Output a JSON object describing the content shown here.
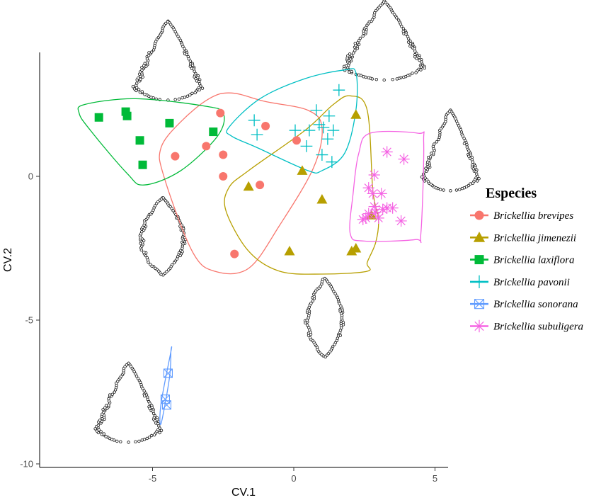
{
  "chart_data": {
    "type": "scatter",
    "title": "",
    "xlabel": "CV.1",
    "ylabel": "CV.2",
    "xlim": [
      -9,
      5.5
    ],
    "ylim": [
      -10.2,
      4.4
    ],
    "x_ticks": [
      -5,
      0,
      5
    ],
    "x_tick_labels": [
      "-5",
      "0",
      "5"
    ],
    "y_ticks": [
      0,
      -5,
      -10
    ],
    "y_tick_labels": [
      "0",
      "-5",
      "-10"
    ],
    "grid": false,
    "legend": {
      "title": "Especies",
      "position": "right"
    },
    "series": [
      {
        "name": "Brickellia brevipes",
        "color": "#F8766D",
        "marker": "circle",
        "points": [
          [
            -2.6,
            2.2
          ],
          [
            -1.0,
            1.75
          ],
          [
            0.1,
            1.25
          ],
          [
            -3.1,
            1.05
          ],
          [
            -2.5,
            0.75
          ],
          [
            -4.2,
            0.7
          ],
          [
            -2.5,
            0.0
          ],
          [
            -1.2,
            -0.3
          ],
          [
            -2.1,
            -2.7
          ]
        ],
        "hull": [
          [
            -2.2,
            2.9
          ],
          [
            -1.0,
            2.6
          ],
          [
            0.5,
            2.3
          ],
          [
            1.0,
            1.7
          ],
          [
            0.7,
            0.3
          ],
          [
            -0.5,
            -1.7
          ],
          [
            -1.6,
            -3.2
          ],
          [
            -2.8,
            -3.3
          ],
          [
            -3.6,
            -2.6
          ],
          [
            -4.6,
            0.0
          ],
          [
            -4.7,
            1.0
          ],
          [
            -4.0,
            1.9
          ],
          [
            -3.0,
            2.7
          ]
        ]
      },
      {
        "name": "Brickellia jimenezii",
        "color": "#B79F00",
        "marker": "triangle",
        "points": [
          [
            2.2,
            2.15
          ],
          [
            0.3,
            0.2
          ],
          [
            -1.6,
            -0.35
          ],
          [
            1.0,
            -0.8
          ],
          [
            -0.15,
            -2.6
          ],
          [
            2.05,
            -2.6
          ],
          [
            2.2,
            -2.5
          ],
          [
            2.75,
            -1.35
          ]
        ],
        "hull": [
          [
            2.0,
            2.8
          ],
          [
            2.6,
            2.3
          ],
          [
            2.8,
            -0.5
          ],
          [
            3.0,
            -1.5
          ],
          [
            2.9,
            -2.3
          ],
          [
            2.6,
            -3.0
          ],
          [
            2.6,
            -3.3
          ],
          [
            1.0,
            -3.4
          ],
          [
            -0.5,
            -3.3
          ],
          [
            -1.6,
            -2.6
          ],
          [
            -2.4,
            -1.2
          ],
          [
            -2.3,
            -0.4
          ],
          [
            -1.6,
            0.2
          ],
          [
            0.4,
            1.6
          ],
          [
            1.4,
            2.5
          ]
        ]
      },
      {
        "name": "Brickellia laxiflora",
        "color": "#00BA38",
        "marker": "square",
        "points": [
          [
            -6.9,
            2.05
          ],
          [
            -5.95,
            2.25
          ],
          [
            -5.9,
            2.1
          ],
          [
            -4.4,
            1.85
          ],
          [
            -2.85,
            1.55
          ],
          [
            -5.45,
            1.25
          ],
          [
            -5.35,
            0.4
          ]
        ],
        "hull": [
          [
            -7.4,
            2.5
          ],
          [
            -5.6,
            2.7
          ],
          [
            -3.2,
            2.45
          ],
          [
            -2.5,
            2.2
          ],
          [
            -2.7,
            1.4
          ],
          [
            -4.0,
            0.2
          ],
          [
            -5.3,
            -0.3
          ],
          [
            -5.9,
            0.1
          ],
          [
            -7.2,
            1.6
          ],
          [
            -7.6,
            2.2
          ]
        ]
      },
      {
        "name": "Brickellia pavonii",
        "color": "#00BFC4",
        "marker": "plus",
        "points": [
          [
            1.6,
            3.0
          ],
          [
            0.8,
            2.3
          ],
          [
            1.25,
            2.1
          ],
          [
            -1.4,
            1.95
          ],
          [
            0.9,
            1.8
          ],
          [
            1.05,
            1.7
          ],
          [
            0.55,
            1.6
          ],
          [
            1.4,
            1.6
          ],
          [
            0.05,
            1.6
          ],
          [
            -1.3,
            1.45
          ],
          [
            1.2,
            1.3
          ],
          [
            0.45,
            1.05
          ],
          [
            1.0,
            0.75
          ],
          [
            1.35,
            0.5
          ]
        ],
        "hull": [
          [
            -2.3,
            1.7
          ],
          [
            -1.2,
            2.7
          ],
          [
            0.4,
            3.4
          ],
          [
            1.8,
            3.7
          ],
          [
            2.2,
            3.6
          ],
          [
            2.2,
            2.3
          ],
          [
            1.8,
            0.8
          ],
          [
            1.0,
            0.2
          ],
          [
            0.5,
            0.2
          ],
          [
            -1.3,
            1.0
          ],
          [
            -2.2,
            1.4
          ]
        ]
      },
      {
        "name": "Brickellia sonorana",
        "color": "#619CFF",
        "marker": "square-x",
        "points": [
          [
            -4.45,
            -6.85
          ],
          [
            -4.55,
            -7.75
          ],
          [
            -4.5,
            -7.95
          ]
        ],
        "hull": [
          [
            -4.35,
            -6.1
          ],
          [
            -4.7,
            -7.9
          ],
          [
            -4.7,
            -8.6
          ],
          [
            -4.4,
            -7.0
          ],
          [
            -4.35,
            -6.1
          ]
        ]
      },
      {
        "name": "Brickellia subuligera",
        "color": "#F564E3",
        "marker": "asterisk",
        "points": [
          [
            3.3,
            0.85
          ],
          [
            3.9,
            0.6
          ],
          [
            2.85,
            0.05
          ],
          [
            2.65,
            -0.4
          ],
          [
            2.8,
            -0.6
          ],
          [
            3.1,
            -0.6
          ],
          [
            2.85,
            -1.05
          ],
          [
            3.3,
            -1.1
          ],
          [
            3.15,
            -1.15
          ],
          [
            3.5,
            -1.1
          ],
          [
            2.9,
            -1.25
          ],
          [
            2.65,
            -1.3
          ],
          [
            2.55,
            -1.45
          ],
          [
            2.45,
            -1.5
          ],
          [
            3.0,
            -1.45
          ],
          [
            3.8,
            -1.55
          ]
        ]
      }
    ],
    "subuligera_hull": [
      [
        2.7,
        1.5
      ],
      [
        4.4,
        1.5
      ],
      [
        4.6,
        1.2
      ],
      [
        4.5,
        -2.0
      ],
      [
        4.3,
        -2.2
      ],
      [
        2.5,
        -2.25
      ],
      [
        2.0,
        -2.0
      ],
      [
        2.1,
        -0.6
      ],
      [
        2.3,
        0.8
      ]
    ],
    "leaf_outlines": [
      {
        "name": "leaf-top-left",
        "tip": [
          -4.45,
          5.4
        ],
        "base": [
          -4.45,
          2.65
        ],
        "half_width": 1.15,
        "shape": "triangular"
      },
      {
        "name": "leaf-top-center",
        "tip": [
          3.2,
          6.1
        ],
        "base": [
          3.2,
          3.35
        ],
        "half_width": 1.35,
        "shape": "triangular"
      },
      {
        "name": "leaf-right",
        "tip": [
          5.55,
          2.3
        ],
        "base": [
          5.55,
          -0.5
        ],
        "half_width": 0.95,
        "shape": "triangular"
      },
      {
        "name": "leaf-middle-left",
        "tip": [
          -4.65,
          -0.75
        ],
        "base": [
          -4.65,
          -3.45
        ],
        "half_width": 1.15,
        "shape": "ovate"
      },
      {
        "name": "leaf-bottom-center",
        "tip": [
          1.1,
          -3.55
        ],
        "base": [
          1.1,
          -6.3
        ],
        "half_width": 0.95,
        "shape": "ovate"
      },
      {
        "name": "leaf-bottom-left",
        "tip": [
          -5.85,
          -6.5
        ],
        "base": [
          -5.85,
          -9.25
        ],
        "half_width": 1.1,
        "shape": "triangular"
      }
    ]
  }
}
